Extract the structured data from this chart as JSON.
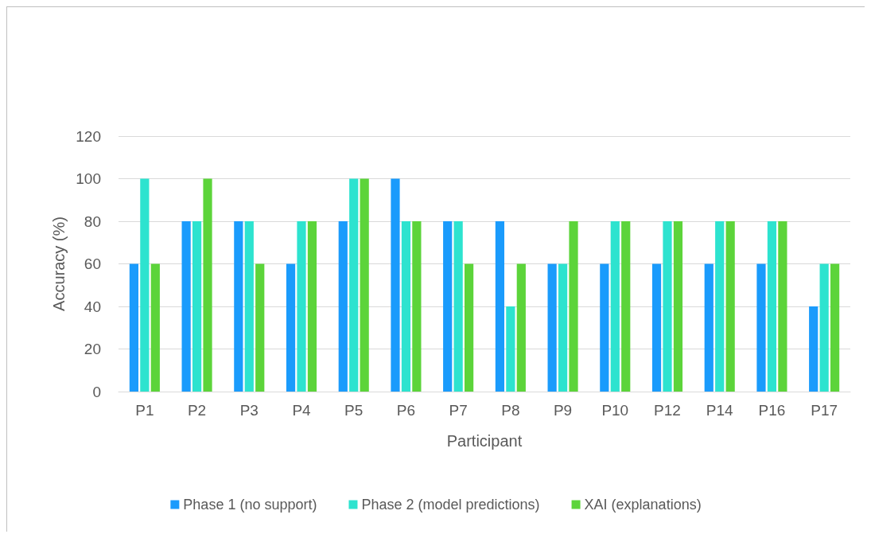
{
  "chart_data": {
    "type": "bar",
    "xlabel": "Participant",
    "ylabel": "Accuracy (%)",
    "categories": [
      "P1",
      "P2",
      "P3",
      "P4",
      "P5",
      "P6",
      "P7",
      "P8",
      "P9",
      "P10",
      "P12",
      "P14",
      "P16",
      "P17"
    ],
    "series": [
      {
        "name": "Phase 1 (no support)",
        "color": "#1a9bfc",
        "values": [
          60,
          80,
          80,
          60,
          80,
          100,
          80,
          80,
          60,
          60,
          60,
          60,
          60,
          40
        ]
      },
      {
        "name": "Phase 2 (model predictions)",
        "color": "#2de3cf",
        "values": [
          100,
          80,
          80,
          80,
          100,
          80,
          80,
          40,
          60,
          80,
          80,
          80,
          80,
          60
        ]
      },
      {
        "name": "XAI (explanations)",
        "color": "#5cd43a",
        "values": [
          60,
          100,
          60,
          80,
          100,
          80,
          60,
          60,
          80,
          80,
          80,
          80,
          80,
          60
        ]
      }
    ],
    "ylim": [
      0,
      120
    ],
    "yticks": [
      0,
      20,
      40,
      60,
      80,
      100,
      120
    ],
    "grid": "y",
    "legend": "bottom"
  }
}
